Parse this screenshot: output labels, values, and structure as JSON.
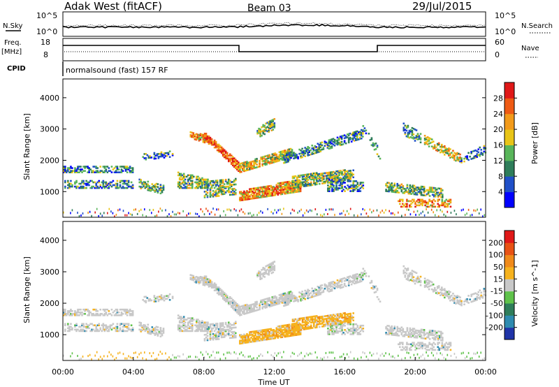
{
  "header": {
    "station": "Adak West (fitACF)",
    "beam": "Beam 03",
    "date": "29/Jul/2015"
  },
  "noise_panel": {
    "left_label": "N.Sky",
    "right_label": "N.Search",
    "tick_top": "10^5",
    "tick_bottom": "10^0"
  },
  "freq_panel": {
    "left_label_1": "Freq.",
    "left_label_2": "[MHz]",
    "right_label": "Nave",
    "left_ticks": [
      "18",
      "8"
    ],
    "right_ticks": [
      "60",
      "0"
    ]
  },
  "cpid_panel": {
    "label": "CPID",
    "program": "normalsound (fast) 157 RF"
  },
  "chart_data": [
    {
      "type": "heatmap",
      "title": "Power",
      "ylabel": "Slant Range [km]",
      "ylim": [
        180,
        4600
      ],
      "yticks": [
        "1000",
        "2000",
        "3000",
        "4000"
      ],
      "colorbar_label": "Power [dB]",
      "colorbar_ticks": [
        "4",
        "8",
        "12",
        "16",
        "20",
        "24",
        "28"
      ],
      "colorbar_colors": [
        "#0000ff",
        "#2050c8",
        "#2e7d5a",
        "#59b55a",
        "#e8c417",
        "#f29a1a",
        "#ee5a14",
        "#e01818"
      ]
    },
    {
      "type": "heatmap",
      "title": "Velocity",
      "ylabel": "Slant Range [km]",
      "ylim": [
        180,
        4600
      ],
      "yticks": [
        "1000",
        "2000",
        "3000",
        "4000"
      ],
      "colorbar_label": "Velocity [m s^-1]",
      "colorbar_ticks": [
        "200",
        "100",
        "50",
        "15",
        "-15",
        "-50",
        "-100",
        "-200"
      ],
      "colorbar_colors": [
        "#2034a8",
        "#2e8bb0",
        "#2e7d5a",
        "#5fc24a",
        "#c8c8c8",
        "#f6b21e",
        "#f08a1a",
        "#e85214",
        "#e01818"
      ]
    }
  ],
  "x_axis": {
    "label": "Time UT",
    "ticks": [
      "00:00",
      "04:00",
      "08:00",
      "12:00",
      "16:00",
      "20:00",
      "00:00"
    ]
  }
}
